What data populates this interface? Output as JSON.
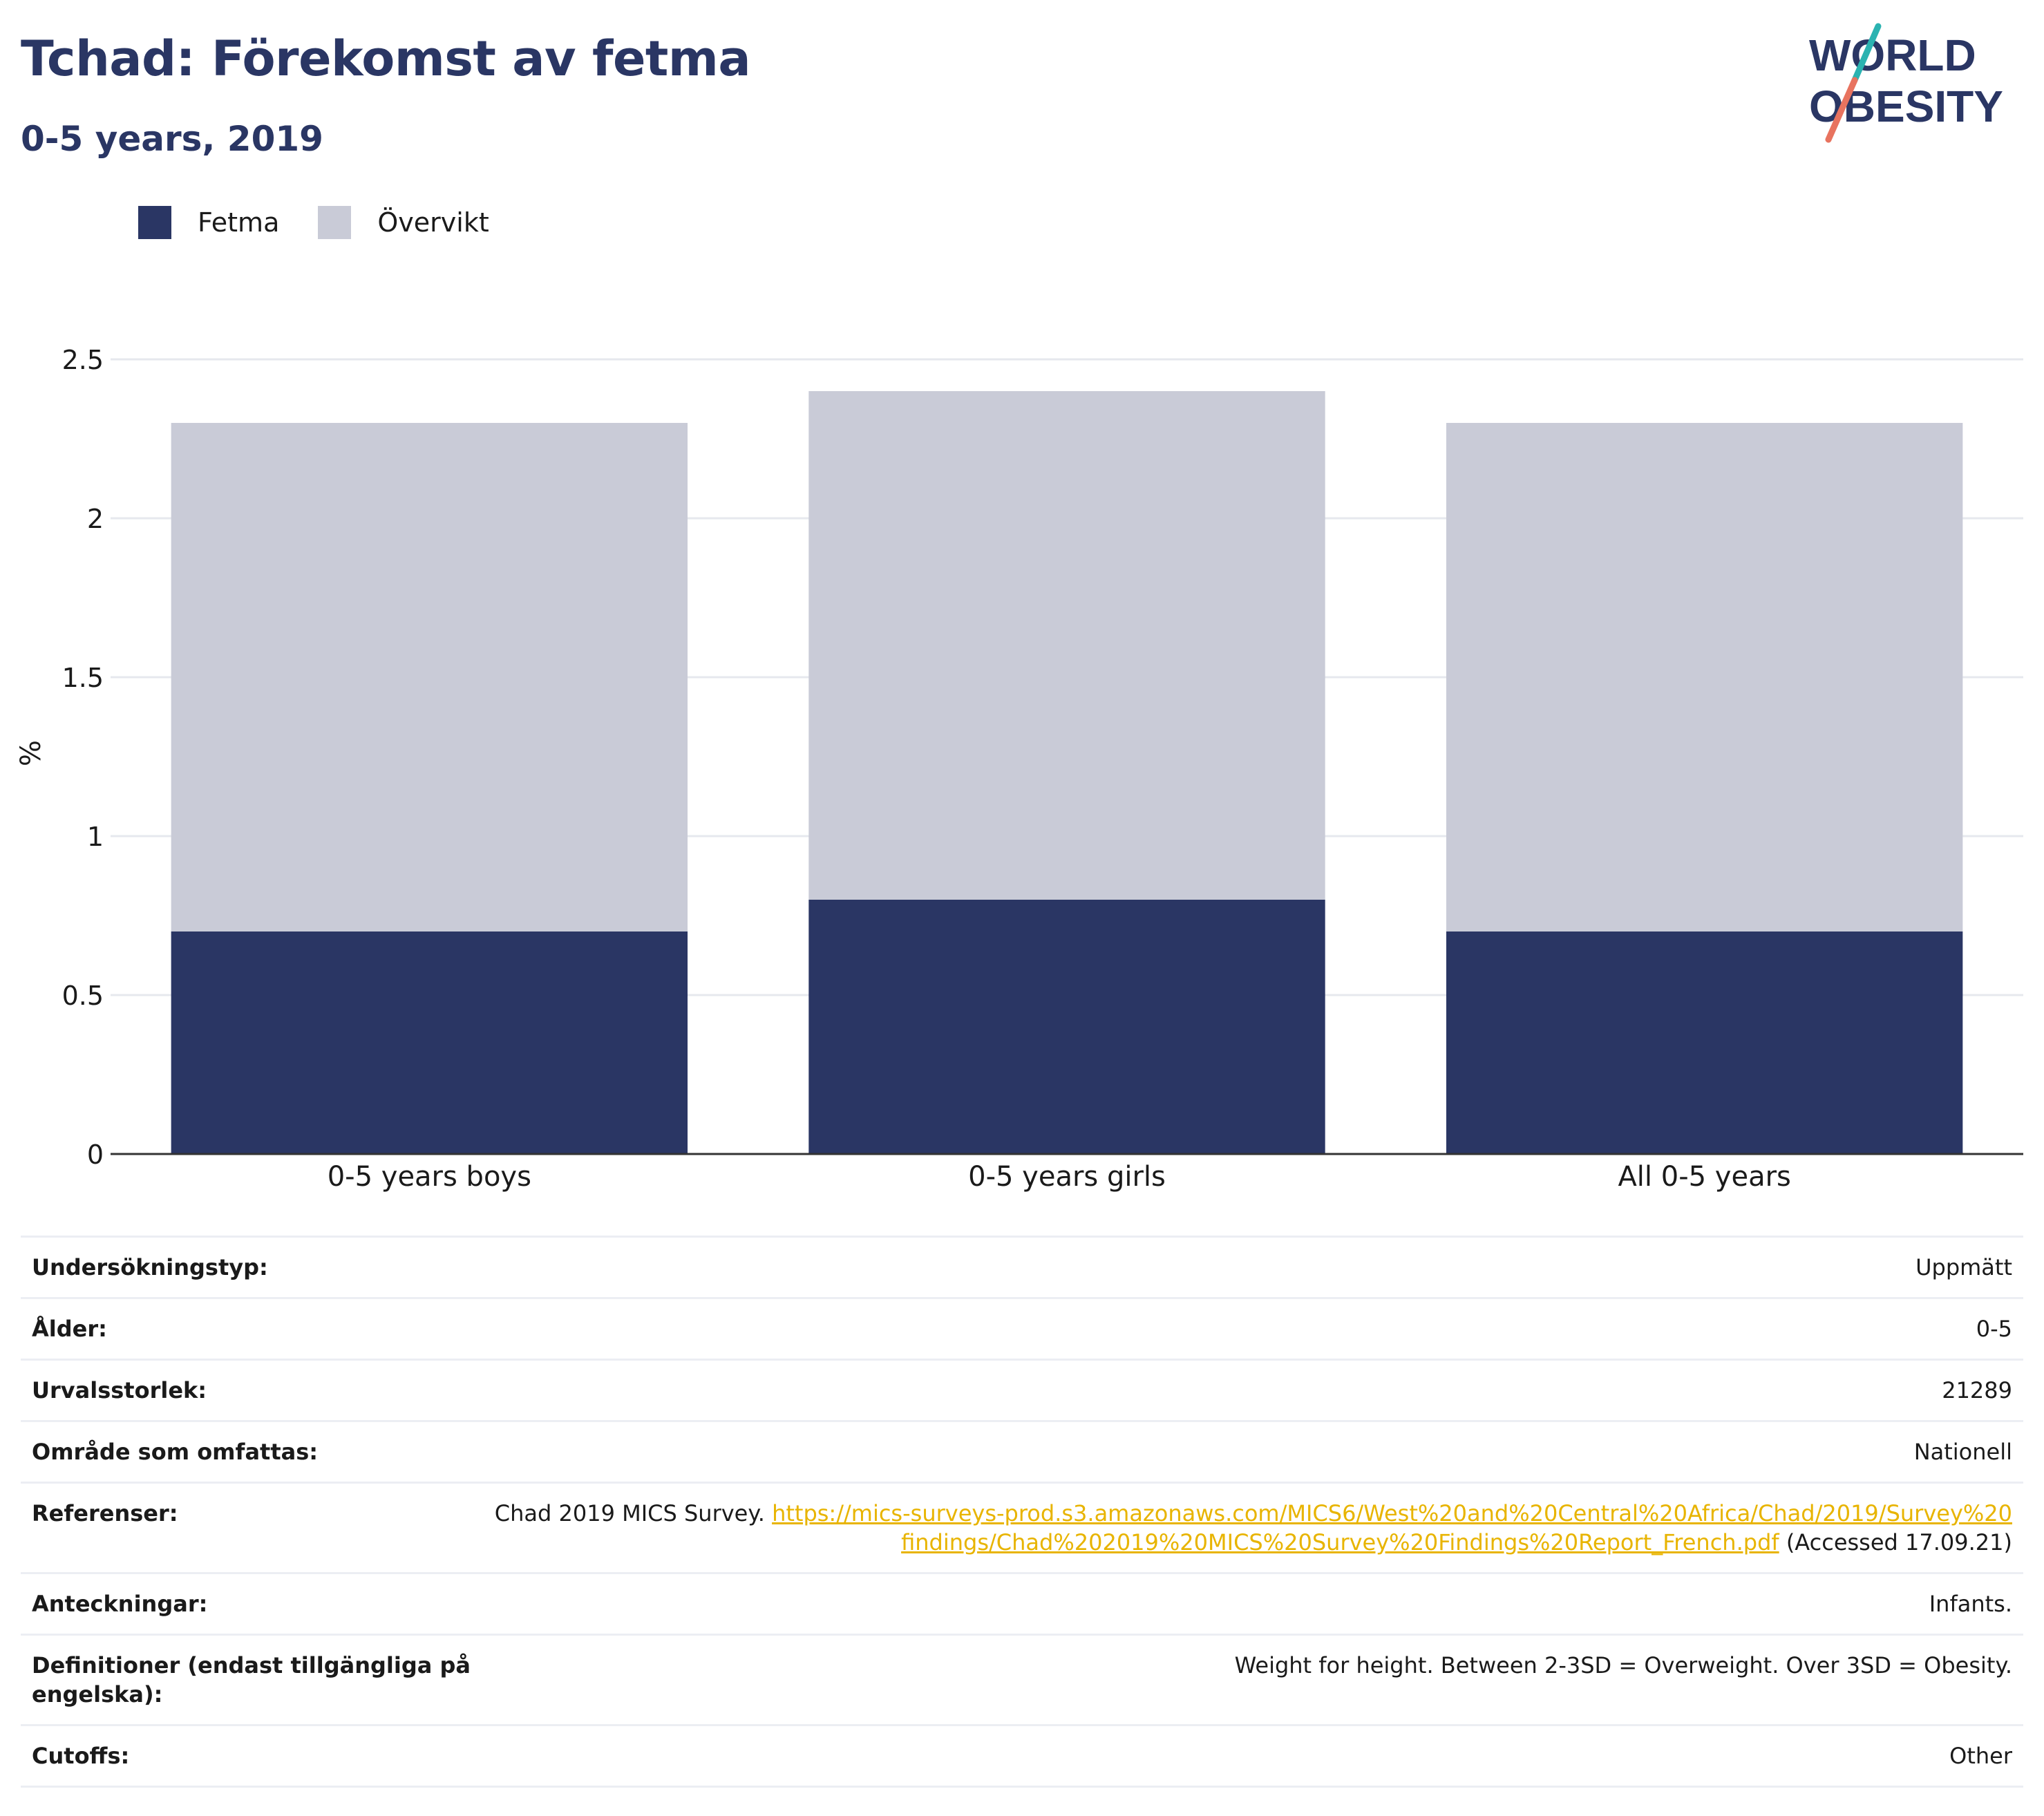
{
  "header": {
    "title": "Tchad: Förekomst av fetma",
    "subtitle": "0-5 years, 2019"
  },
  "logo": {
    "line1": "WORLD",
    "line2": "OBESITY"
  },
  "colors": {
    "fetma": "#2a3664",
    "overvikt": "#c9cbd7",
    "title": "#2a3664",
    "link": "#e8b400",
    "logo_teal": "#2bb3b1",
    "logo_coral": "#e8735f"
  },
  "chart_data": {
    "type": "bar",
    "stacked": true,
    "ylabel": "%",
    "ylim": [
      0,
      2.5
    ],
    "yticks": [
      0,
      0.5,
      1,
      1.5,
      2,
      2.5
    ],
    "ytick_labels": [
      "0",
      "0.5",
      "1",
      "1.5",
      "2",
      "2.5"
    ],
    "grid": true,
    "legend_position": "top-left",
    "categories": [
      "0-5 years boys",
      "0-5 years girls",
      "All 0-5 years"
    ],
    "series": [
      {
        "name": "Fetma",
        "color": "#2a3664",
        "values": [
          0.7,
          0.8,
          0.7
        ]
      },
      {
        "name": "Övervikt",
        "color": "#c9cbd7",
        "values": [
          1.6,
          1.6,
          1.6
        ]
      }
    ]
  },
  "info": {
    "survey_type": {
      "label": "Undersökningstyp:",
      "value": "Uppmätt"
    },
    "age": {
      "label": "Ålder:",
      "value": "0-5"
    },
    "sample_size": {
      "label": "Urvalsstorlek:",
      "value": "21289"
    },
    "area": {
      "label": "Område som omfattas:",
      "value": "Nationell"
    },
    "references": {
      "label": "Referenser:",
      "prefix": "Chad 2019 MICS Survey. ",
      "link": "https://mics-surveys-prod.s3.amazonaws.com/MICS6/West%20and%20Central%20Africa/Chad/2019/Survey%20findings/Chad%202019%20MICS%20Survey%20Findings%20Report_French.pdf",
      "suffix": " (Accessed 17.09.21)"
    },
    "notes": {
      "label": "Anteckningar:",
      "value": "Infants."
    },
    "definitions": {
      "label": "Definitioner (endast tillgängliga på engelska):",
      "value": "Weight for height. Between 2-3SD = Overweight. Over 3SD = Obesity."
    },
    "cutoffs": {
      "label": "Cutoffs:",
      "value": "Other"
    }
  }
}
